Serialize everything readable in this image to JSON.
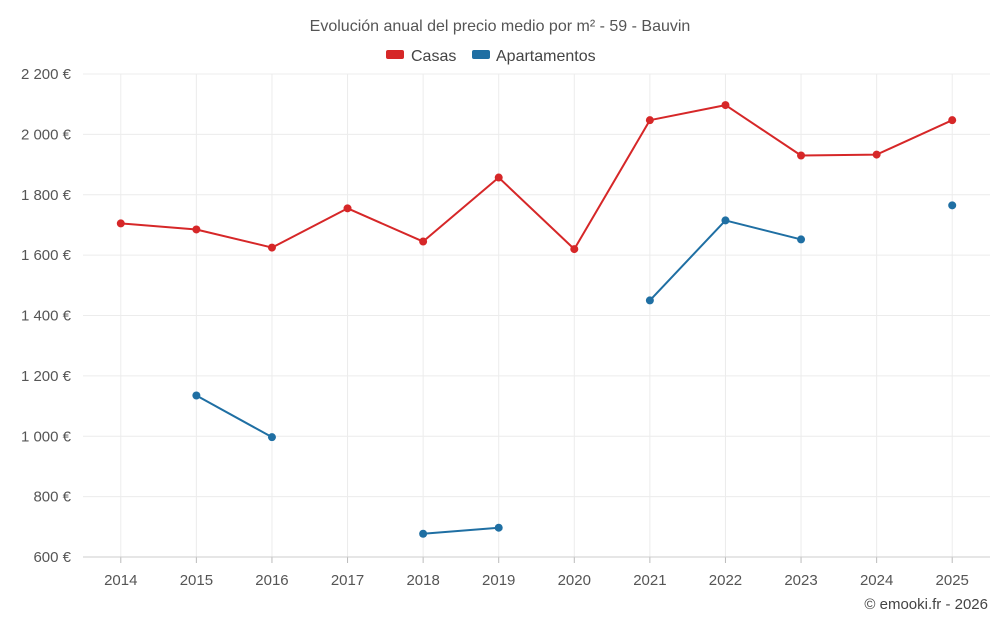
{
  "chart_data": {
    "type": "line",
    "title": "Evolución anual del precio medio por m² - 59 - Bauvin",
    "categories": [
      "2014",
      "2015",
      "2016",
      "2017",
      "2018",
      "2019",
      "2020",
      "2021",
      "2022",
      "2023",
      "2024",
      "2025"
    ],
    "ylim": [
      600,
      2200
    ],
    "yticks": [
      600,
      800,
      1000,
      1200,
      1400,
      1600,
      1800,
      2000,
      2200
    ],
    "ytick_labels": [
      "600 €",
      "800 €",
      "1 000 €",
      "1 200 €",
      "1 400 €",
      "1 600 €",
      "1 800 €",
      "2 000 €",
      "2 200 €"
    ],
    "grid": true,
    "legend_position": "top-center",
    "series": [
      {
        "name": "Casas",
        "color": "#d62728",
        "values": [
          1705,
          1685,
          1625,
          1755,
          1645,
          1857,
          1620,
          2047,
          2097,
          1930,
          1933,
          2047
        ]
      },
      {
        "name": "Apartamentos",
        "color": "#1f6fa3",
        "values": [
          null,
          1135,
          997,
          null,
          677,
          697,
          null,
          1450,
          1715,
          1652,
          null,
          1765
        ]
      }
    ],
    "credit": "© emooki.fr - 2026"
  }
}
